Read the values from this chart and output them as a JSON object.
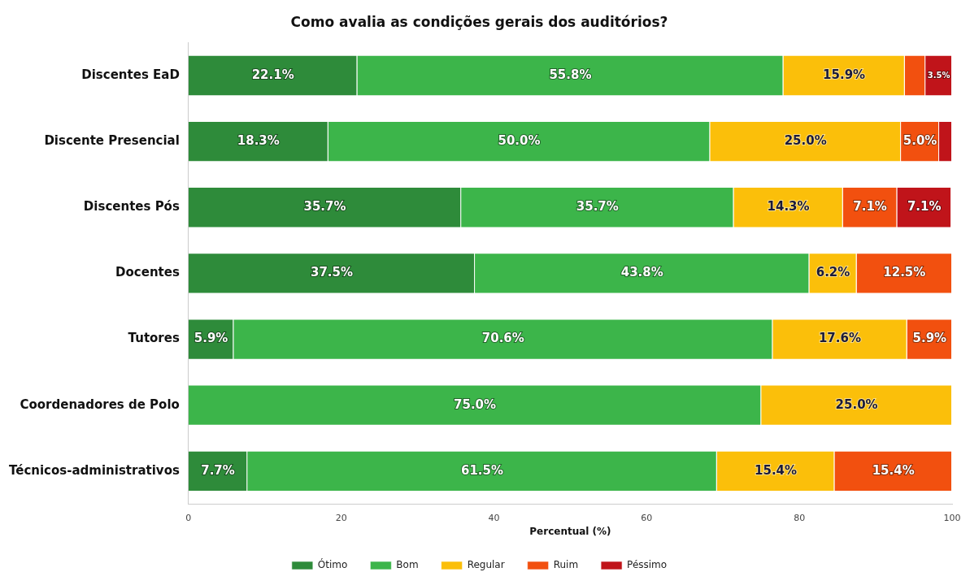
{
  "chart_data": {
    "type": "bar",
    "orientation": "horizontal",
    "stacked": true,
    "title": "Como avalia as condições gerais dos auditórios?",
    "xlabel": "Percentual (%)",
    "categories": [
      "Discentes EaD",
      "Discente Presencial",
      "Discentes Pós",
      "Docentes",
      "Tutores",
      "Coordenadores de Polo",
      "Técnicos-administrativos"
    ],
    "series": [
      {
        "name": "Ótimo",
        "color": "#2e8b3a",
        "values": [
          22.1,
          18.3,
          35.7,
          37.5,
          5.9,
          0,
          7.7
        ],
        "value_labels": [
          "22.1%",
          "18.3%",
          "35.7%",
          "37.5%",
          "5.9%",
          null,
          "7.7%"
        ]
      },
      {
        "name": "Bom",
        "color": "#3cb54a",
        "values": [
          55.8,
          50.0,
          35.7,
          43.8,
          70.6,
          75.0,
          61.5
        ],
        "value_labels": [
          "55.8%",
          "50.0%",
          "35.7%",
          "43.8%",
          "70.6%",
          "75.0%",
          "61.5%"
        ]
      },
      {
        "name": "Regular",
        "color": "#fbbf0a",
        "values": [
          15.9,
          25.0,
          14.3,
          6.2,
          17.6,
          25.0,
          15.4
        ],
        "value_labels": [
          "15.9%",
          "25.0%",
          "14.3%",
          "6.2%",
          "17.6%",
          "25.0%",
          "15.4%"
        ]
      },
      {
        "name": "Ruim",
        "color": "#f2500f",
        "values": [
          2.7,
          5.0,
          7.1,
          12.5,
          5.9,
          0,
          15.4
        ],
        "value_labels": [
          null,
          "5.0%",
          "7.1%",
          "12.5%",
          "5.9%",
          null,
          "15.4%"
        ]
      },
      {
        "name": "Péssimo",
        "color": "#c0141a",
        "values": [
          3.5,
          1.7,
          7.1,
          0,
          0,
          0,
          0
        ],
        "value_labels": [
          "3.5%",
          null,
          "7.1%",
          null,
          null,
          null,
          null
        ]
      }
    ],
    "xlim": [
      0,
      100
    ],
    "xticks": [
      0,
      20,
      40,
      60,
      80,
      100
    ],
    "grid": false,
    "legend": "bottom"
  }
}
